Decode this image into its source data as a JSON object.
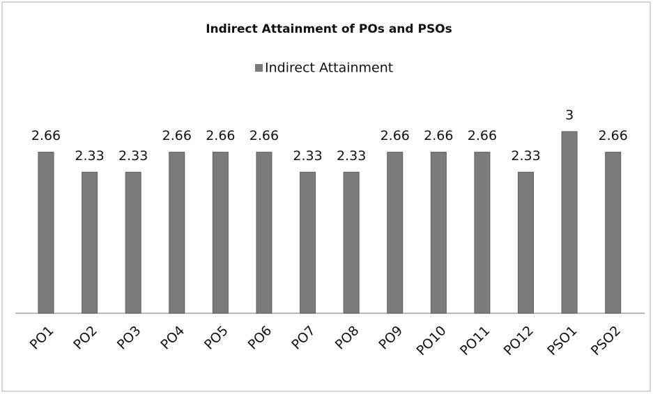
{
  "chart_data": {
    "type": "bar",
    "title": "Indirect Attainment of POs and PSOs",
    "categories": [
      "PO1",
      "PO2",
      "PO3",
      "PO4",
      "PO5",
      "PO6",
      "PO7",
      "PO8",
      "PO9",
      "PO10",
      "PO11",
      "PO12",
      "PSO1",
      "PSO2"
    ],
    "series": [
      {
        "name": "Indirect Attainment",
        "color": "#7b7b7b",
        "values": [
          2.66,
          2.33,
          2.33,
          2.66,
          2.66,
          2.66,
          2.33,
          2.33,
          2.66,
          2.66,
          2.66,
          2.33,
          3,
          2.66
        ]
      }
    ],
    "legend": "top",
    "data_labels": true
  }
}
